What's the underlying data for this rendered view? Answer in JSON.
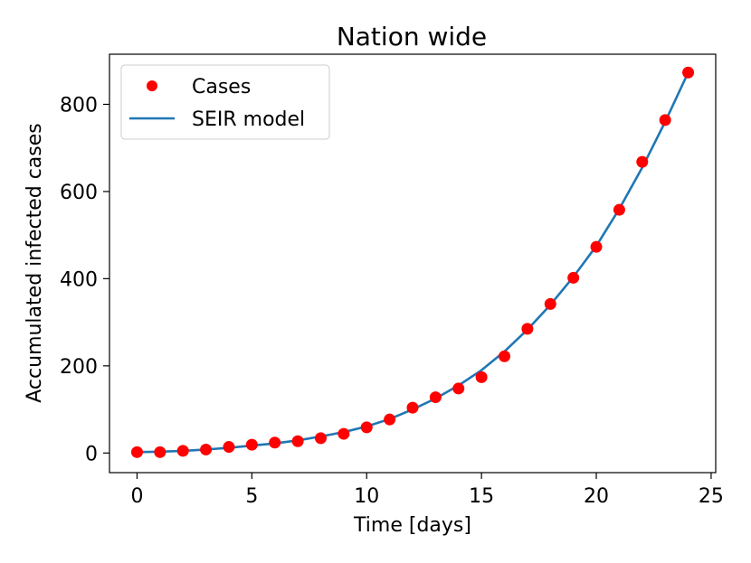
{
  "chart_data": {
    "type": "line",
    "title": "Nation wide",
    "xlabel": "Time [days]",
    "ylabel": "Accumulated infected cases",
    "xlim": [
      -1.2,
      25.2
    ],
    "ylim": [
      -45,
      915
    ],
    "xticks": [
      0,
      5,
      10,
      15,
      20,
      25
    ],
    "yticks": [
      0,
      200,
      400,
      600,
      800
    ],
    "grid": false,
    "legend_position": "top-left",
    "series": [
      {
        "name": "Cases",
        "kind": "scatter",
        "color": "#ff0000",
        "x": [
          0,
          1,
          2,
          3,
          4,
          5,
          6,
          7,
          8,
          9,
          10,
          11,
          12,
          13,
          14,
          15,
          16,
          17,
          18,
          19,
          20,
          21,
          22,
          23,
          24
        ],
        "y": [
          2,
          2,
          5,
          8,
          14,
          19,
          24,
          27,
          34,
          44,
          59,
          77,
          104,
          128,
          148,
          174,
          222,
          285,
          342,
          402,
          473,
          558,
          668,
          764,
          873
        ]
      },
      {
        "name": "SEIR model",
        "kind": "line",
        "color": "#1f77b4",
        "x": [
          0,
          1,
          2,
          3,
          4,
          5,
          6,
          7,
          8,
          9,
          10,
          11,
          12,
          13,
          14,
          15,
          16,
          17,
          18,
          19,
          20,
          21,
          22,
          23,
          24
        ],
        "y": [
          2,
          3,
          5,
          8,
          12,
          17,
          22,
          29,
          38,
          48,
          61,
          78,
          100,
          125,
          155,
          190,
          233,
          283,
          340,
          404,
          475,
          560,
          655,
          760,
          873
        ]
      }
    ]
  }
}
